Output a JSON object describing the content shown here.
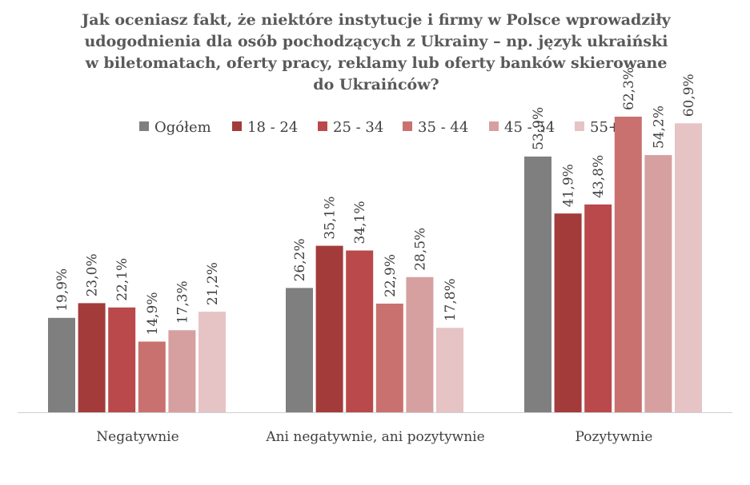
{
  "chart_data": {
    "type": "bar",
    "title_lines": [
      "Jak oceniasz fakt, że niektóre instytucje i firmy w Polsce wprowadziły",
      "udogodnienia dla osób pochodzących z Ukrainy – np. język ukraiński",
      "w biletomatach, oferty pracy, reklamy lub oferty banków skierowane",
      "do Ukraińców?"
    ],
    "categories": [
      "Negatywnie",
      "Ani negatywnie, ani pozytywnie",
      "Pozytywnie"
    ],
    "series": [
      {
        "name": "Ogółem",
        "color": "#7f7f7f",
        "values": [
          19.9,
          26.2,
          53.9
        ],
        "labels": [
          "19,9%",
          "26,2%",
          "53,9%"
        ]
      },
      {
        "name": "18 - 24",
        "color": "#a33b3b",
        "values": [
          23.0,
          35.1,
          41.9
        ],
        "labels": [
          "23,0%",
          "35,1%",
          "41,9%"
        ]
      },
      {
        "name": "25 - 34",
        "color": "#b9494a",
        "values": [
          22.1,
          34.1,
          43.8
        ],
        "labels": [
          "22,1%",
          "34,1%",
          "43,8%"
        ]
      },
      {
        "name": "35 - 44",
        "color": "#c9716f",
        "values": [
          14.9,
          22.9,
          62.3
        ],
        "labels": [
          "14,9%",
          "22,9%",
          "62,3%"
        ]
      },
      {
        "name": "45 - 54",
        "color": "#d6a0a0",
        "values": [
          17.3,
          28.5,
          54.2
        ],
        "labels": [
          "17,3%",
          "28,5%",
          "54,2%"
        ]
      },
      {
        "name": "55+",
        "color": "#e6c3c5",
        "values": [
          21.2,
          17.8,
          60.9
        ],
        "labels": [
          "21,2%",
          "17,8%",
          "60,9%"
        ]
      }
    ],
    "ylim": [
      0,
      65
    ],
    "legend_position": "top",
    "gridlines": false,
    "xlabel": "",
    "ylabel": ""
  }
}
